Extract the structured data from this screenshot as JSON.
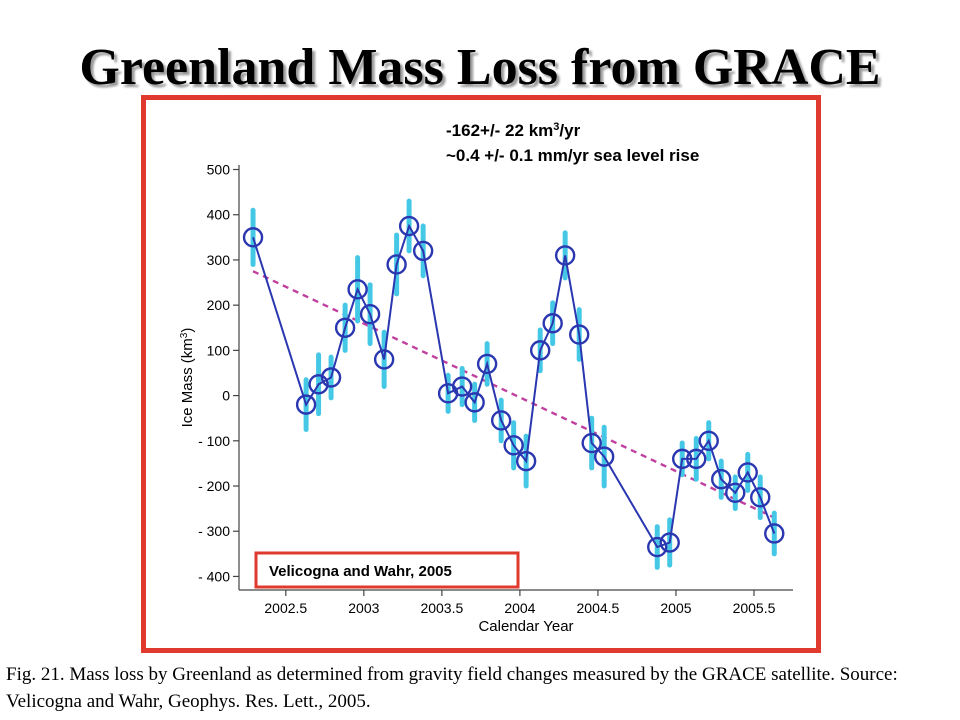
{
  "slide": {
    "title": "Greenland Mass Loss from GRACE",
    "caption": "Fig. 21. Mass loss by Greenland as determined from gravity field changes measured by the GRACE satellite. Source: Velicogna and Wahr, Geophys. Res. Lett., 2005."
  },
  "colors": {
    "frame": "#e03a2e",
    "series_line": "#2b37b0",
    "error_bar": "#45c8e6",
    "trend": "#c040a0"
  },
  "chart_data": {
    "type": "line",
    "xlabel": "Calendar Year",
    "ylabel": "Ice Mass (km3)",
    "xlim": [
      2002.2,
      2005.75
    ],
    "ylim": [
      -430,
      510
    ],
    "x_ticks": [
      2002.5,
      2003,
      2003.5,
      2004,
      2004.5,
      2005,
      2005.5
    ],
    "x_tick_labels": [
      "2002.5",
      "2003",
      "2003.5",
      "2004",
      "2004.5",
      "2005",
      "2005.5"
    ],
    "y_ticks": [
      500,
      400,
      300,
      200,
      100,
      0,
      -100,
      -200,
      -300,
      -400
    ],
    "y_tick_labels": [
      "500",
      "400",
      "300",
      "200",
      "100",
      "0",
      "- 100",
      "- 200",
      "- 300",
      "- 400"
    ],
    "annotations": [
      {
        "base": "-162+/- 22 km",
        "sup": "3",
        "tail": "/yr"
      },
      {
        "base": "~0.4 +/- 0.1 mm/yr sea level rise",
        "sup": "",
        "tail": ""
      }
    ],
    "source_box": "Velicogna and Wahr, 2005",
    "grid": false,
    "series": [
      {
        "x": [
          2002.29,
          2002.63,
          2002.71,
          2002.79,
          2002.88,
          2002.96,
          2003.04,
          2003.13,
          2003.21,
          2003.29,
          2003.38,
          2003.54,
          2003.63,
          2003.71,
          2003.79,
          2003.88,
          2003.96,
          2004.04,
          2004.13,
          2004.21,
          2004.29,
          2004.38,
          2004.46,
          2004.54,
          2004.88,
          2004.96,
          2005.04,
          2005.13,
          2005.21,
          2005.29,
          2005.38,
          2005.46,
          2005.54,
          2005.63
        ],
        "y": [
          350,
          -20,
          25,
          40,
          150,
          235,
          180,
          80,
          290,
          375,
          320,
          5,
          20,
          -15,
          70,
          -55,
          -110,
          -145,
          100,
          160,
          310,
          135,
          -105,
          -135,
          -335,
          -325,
          -140,
          -140,
          -100,
          -185,
          -215,
          -170,
          -225,
          -305
        ],
        "errors": [
          60,
          55,
          65,
          45,
          50,
          70,
          65,
          60,
          65,
          55,
          55,
          40,
          40,
          40,
          45,
          45,
          50,
          55,
          45,
          45,
          50,
          55,
          55,
          65,
          45,
          50,
          35,
          45,
          40,
          40,
          35,
          40,
          45,
          45
        ]
      }
    ],
    "trend": {
      "x": [
        2002.29,
        2005.63
      ],
      "y": [
        275,
        -270
      ]
    }
  }
}
